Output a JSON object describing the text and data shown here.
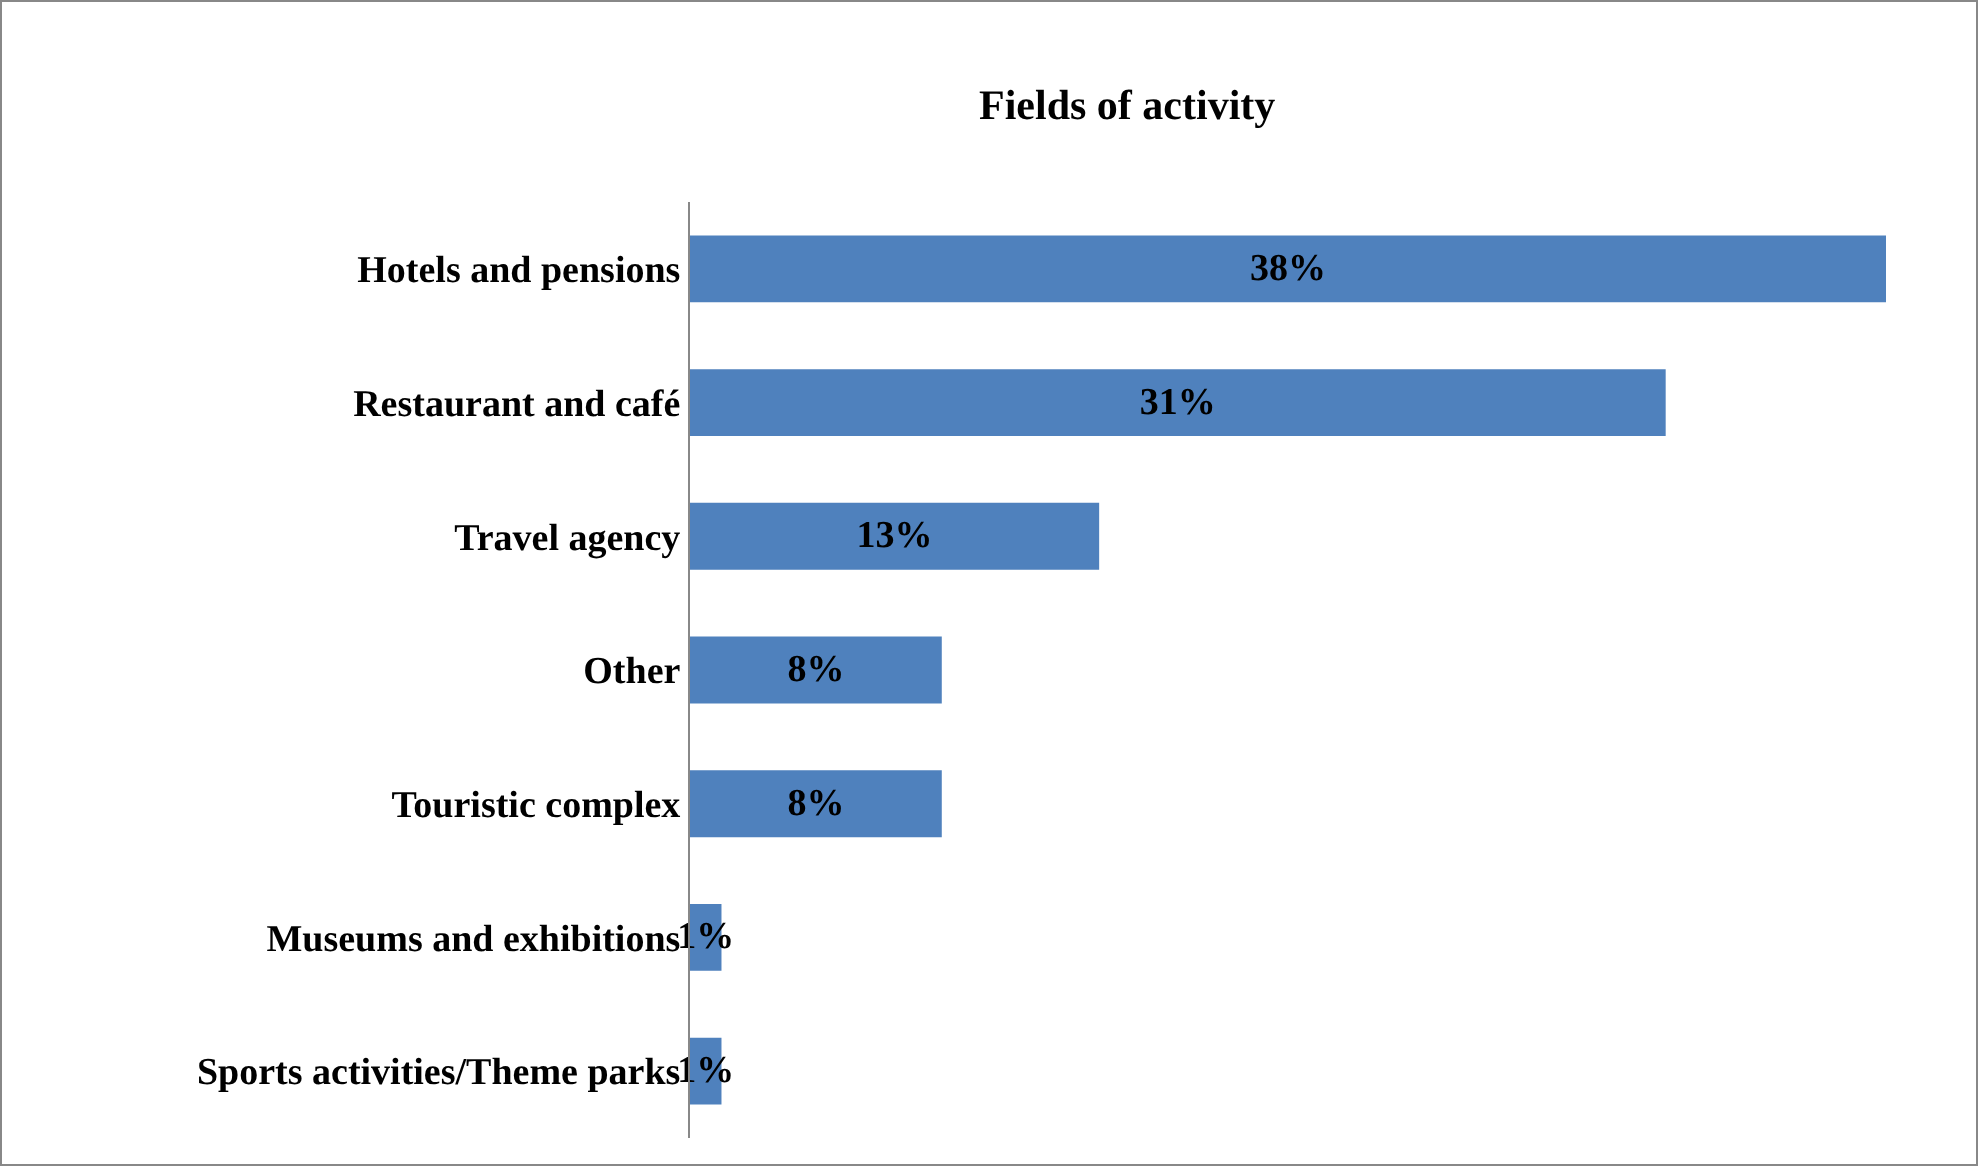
{
  "chart_data": {
    "type": "bar",
    "orientation": "horizontal",
    "title": "Fields of activity",
    "categories": [
      "Hotels and pensions",
      "Restaurant and café",
      "Travel agency",
      "Other",
      "Touristic complex",
      "Museums and exhibitions",
      "Sports activities/Theme parks"
    ],
    "values": [
      38,
      31,
      13,
      8,
      8,
      1,
      1
    ],
    "value_labels": [
      "38%",
      "31%",
      "13%",
      "8%",
      "8%",
      "1%",
      "1%"
    ],
    "color": "#4f81bd"
  }
}
